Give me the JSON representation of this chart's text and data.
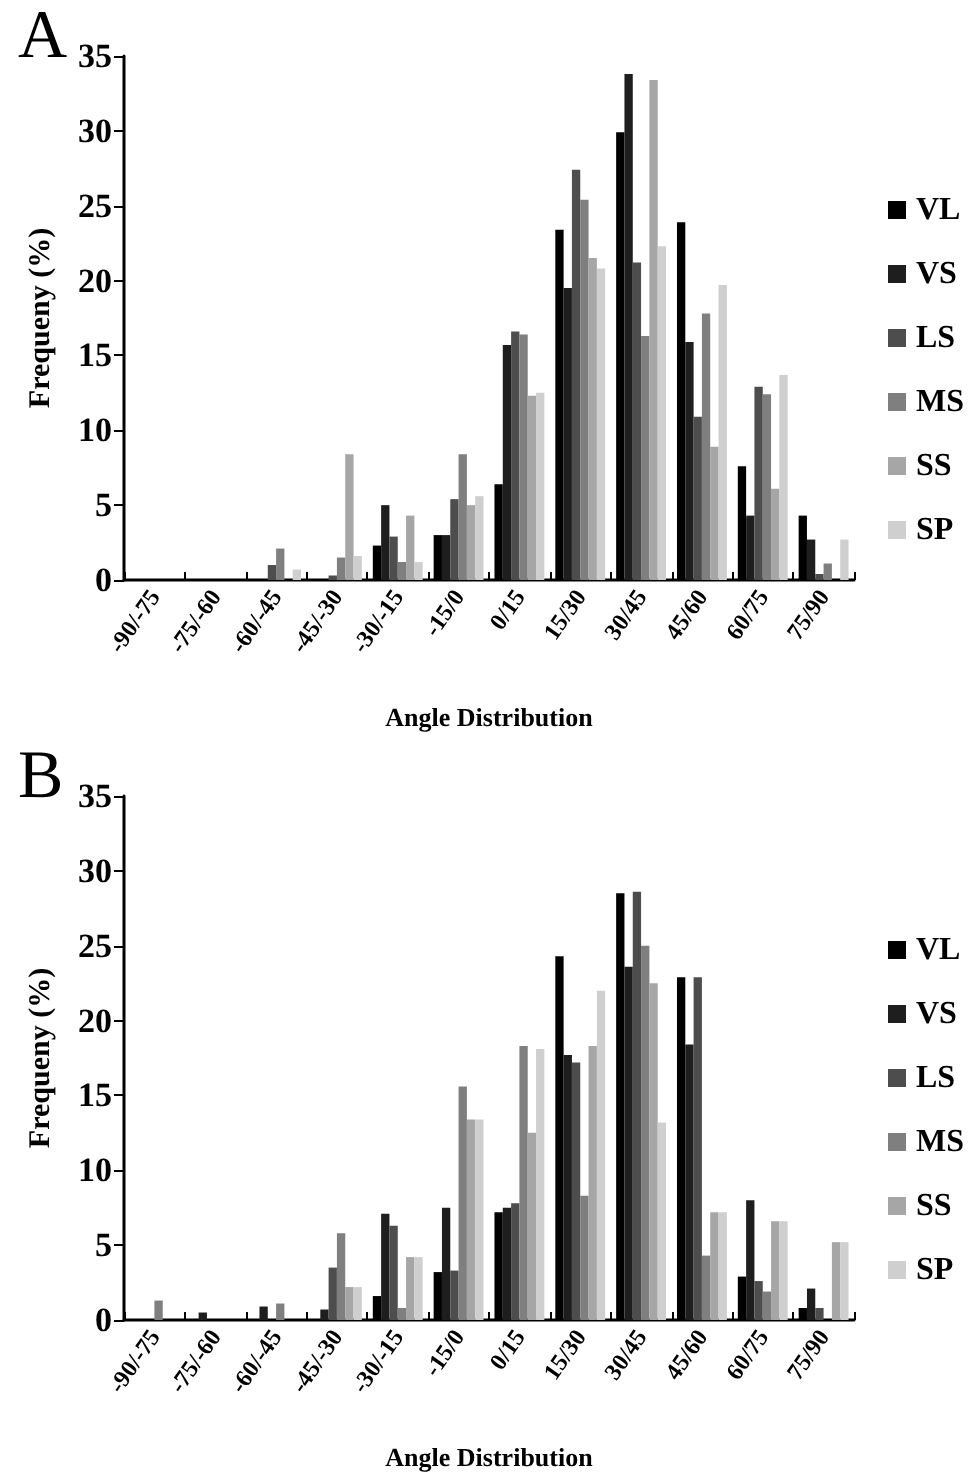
{
  "chart_data": [
    {
      "type": "bar",
      "title": "A",
      "xlabel": "Angle Distribution",
      "ylabel": "Frequeny (%)",
      "categories": [
        "-90/-75",
        "-75/-60",
        "-60/-45",
        "-45/-30",
        "-30/-15",
        "-15/0",
        "0/15",
        "15/30",
        "30/45",
        "45/60",
        "60/75",
        "75/90"
      ],
      "ylim": [
        0,
        35
      ],
      "yticks": [
        0,
        5,
        10,
        15,
        20,
        25,
        30,
        35
      ],
      "grid": false,
      "legend": "right",
      "series": [
        {
          "name": "VL",
          "color": "#000000",
          "values": [
            0,
            0,
            0,
            0,
            2.3,
            3.0,
            6.4,
            23.4,
            29.9,
            23.9,
            7.6,
            4.3
          ]
        },
        {
          "name": "VS",
          "color": "#1e1e1e",
          "values": [
            0,
            0,
            0,
            0,
            5.0,
            3.0,
            15.7,
            19.5,
            33.8,
            15.9,
            4.3,
            2.7
          ]
        },
        {
          "name": "LS",
          "color": "#4d4d4d",
          "values": [
            0,
            0,
            1.0,
            0.3,
            2.9,
            5.4,
            16.6,
            27.4,
            21.2,
            10.9,
            12.9,
            0.4
          ]
        },
        {
          "name": "MS",
          "color": "#7f7f7f",
          "values": [
            0,
            0,
            2.1,
            1.5,
            1.2,
            8.4,
            16.4,
            25.4,
            16.3,
            17.8,
            12.4,
            1.1
          ]
        },
        {
          "name": "SS",
          "color": "#a6a6a6",
          "values": [
            0,
            0,
            0,
            8.4,
            4.3,
            5.0,
            12.3,
            21.5,
            33.4,
            8.9,
            6.1,
            null
          ]
        },
        {
          "name": "SP",
          "color": "#cfcfcf",
          "values": [
            0,
            0,
            0.7,
            1.6,
            1.2,
            5.6,
            12.5,
            20.8,
            22.3,
            19.7,
            13.7,
            2.7
          ]
        }
      ]
    },
    {
      "type": "bar",
      "title": "B",
      "xlabel": "Angle Distribution",
      "ylabel": "Frequeny (%)",
      "categories": [
        "-90/-75",
        "-75/-60",
        "-60/-45",
        "-45/-30",
        "-30/-15",
        "-15/0",
        "0/15",
        "15/30",
        "30/45",
        "45/60",
        "60/75",
        "75/90"
      ],
      "ylim": [
        0,
        35
      ],
      "yticks": [
        0,
        5,
        10,
        15,
        20,
        25,
        30,
        35
      ],
      "grid": false,
      "legend": "right",
      "series": [
        {
          "name": "VL",
          "color": "#000000",
          "values": [
            0,
            0,
            0,
            0,
            1.6,
            3.2,
            7.2,
            24.3,
            28.5,
            22.9,
            2.9,
            0.8
          ]
        },
        {
          "name": "VS",
          "color": "#1e1e1e",
          "values": [
            0,
            0.5,
            0.9,
            0.7,
            7.1,
            7.5,
            7.5,
            17.7,
            23.6,
            18.4,
            8.0,
            2.1
          ]
        },
        {
          "name": "LS",
          "color": "#4d4d4d",
          "values": [
            0,
            0,
            0,
            3.5,
            6.3,
            3.3,
            7.8,
            17.2,
            28.6,
            22.9,
            2.6,
            0.8
          ]
        },
        {
          "name": "MS",
          "color": "#7f7f7f",
          "values": [
            1.3,
            0,
            1.1,
            5.8,
            0.8,
            15.6,
            18.3,
            8.3,
            25.0,
            4.3,
            1.9,
            0
          ]
        },
        {
          "name": "SS",
          "color": "#a6a6a6",
          "values": [
            0,
            0,
            0,
            2.2,
            4.2,
            13.4,
            12.5,
            18.3,
            22.5,
            7.2,
            6.6,
            5.2
          ]
        },
        {
          "name": "SP",
          "color": "#cfcfcf",
          "values": [
            0,
            0,
            0,
            2.2,
            4.2,
            13.4,
            18.1,
            22.0,
            13.2,
            7.2,
            6.6,
            5.2
          ]
        }
      ]
    }
  ]
}
